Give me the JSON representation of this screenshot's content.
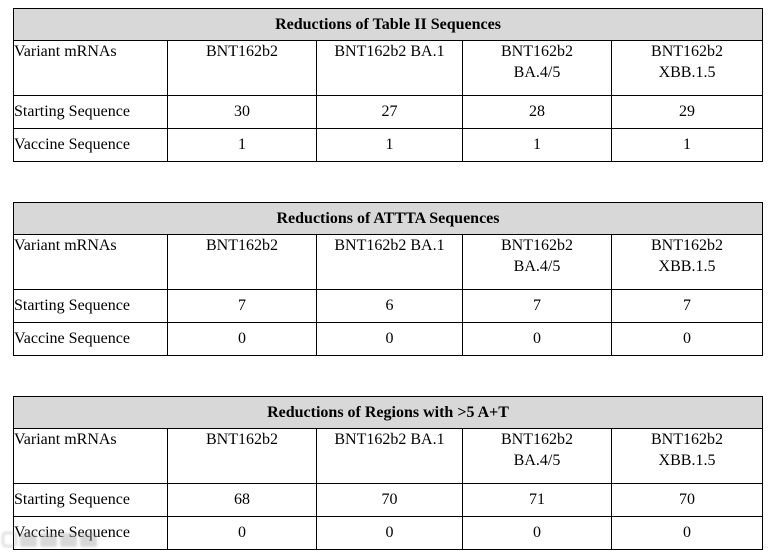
{
  "page": {
    "background": "#ffffff",
    "border_color": "#000000",
    "title_bar_color": "#d8d8d8"
  },
  "tables": [
    {
      "title": "Reductions of Table II Sequences",
      "columns": [
        {
          "label": "Variant mRNAs",
          "sub": ""
        },
        {
          "label": "BNT162b2",
          "sub": ""
        },
        {
          "label": "BNT162b2 BA.1",
          "sub": ""
        },
        {
          "label": "BNT162b2",
          "sub": "BA.4/5"
        },
        {
          "label": "BNT162b2",
          "sub": "XBB.1.5"
        }
      ],
      "rows": [
        {
          "label": "Starting Sequence",
          "values": [
            "30",
            "27",
            "28",
            "29"
          ]
        },
        {
          "label": "Vaccine Sequence",
          "values": [
            "1",
            "1",
            "1",
            "1"
          ]
        }
      ]
    },
    {
      "title": "Reductions of ATTTA Sequences",
      "columns": [
        {
          "label": "Variant mRNAs",
          "sub": ""
        },
        {
          "label": "BNT162b2",
          "sub": ""
        },
        {
          "label": "BNT162b2 BA.1",
          "sub": ""
        },
        {
          "label": "BNT162b2",
          "sub": "BA.4/5"
        },
        {
          "label": "BNT162b2",
          "sub": "XBB.1.5"
        }
      ],
      "rows": [
        {
          "label": "Starting Sequence",
          "values": [
            "7",
            "6",
            "7",
            "7"
          ]
        },
        {
          "label": "Vaccine Sequence",
          "values": [
            "0",
            "0",
            "0",
            "0"
          ]
        }
      ]
    },
    {
      "title": "Reductions of Regions with >5 A+T",
      "columns": [
        {
          "label": "Variant mRNAs",
          "sub": ""
        },
        {
          "label": "BNT162b2",
          "sub": ""
        },
        {
          "label": "BNT162b2 BA.1",
          "sub": ""
        },
        {
          "label": "BNT162b2",
          "sub": "BA.4/5"
        },
        {
          "label": "BNT162b2",
          "sub": "XBB.1.5"
        }
      ],
      "rows": [
        {
          "label": "Starting Sequence",
          "values": [
            "68",
            "70",
            "71",
            "70"
          ]
        },
        {
          "label": "Vaccine Sequence",
          "values": [
            "0",
            "0",
            "0",
            "0"
          ]
        }
      ]
    }
  ]
}
